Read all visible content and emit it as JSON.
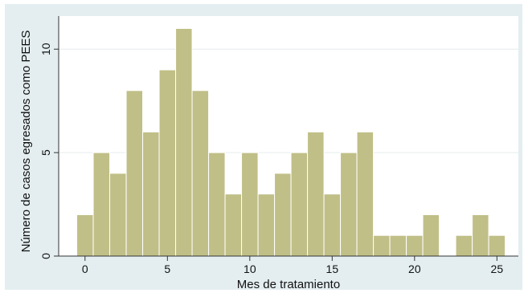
{
  "chart_data": {
    "type": "bar",
    "title": "",
    "xlabel": "Mes de tratamiento",
    "ylabel": "Número de casos egresados como PEES",
    "x": [
      0,
      1,
      2,
      3,
      4,
      5,
      6,
      7,
      8,
      9,
      10,
      11,
      12,
      13,
      14,
      15,
      16,
      17,
      18,
      19,
      20,
      21,
      23,
      24,
      25
    ],
    "values": [
      2,
      5,
      4,
      8,
      6,
      9,
      11,
      8,
      5,
      3,
      5,
      3,
      4,
      5,
      6,
      3,
      5,
      6,
      1,
      1,
      1,
      2,
      1,
      2,
      1
    ],
    "bin_width": 1,
    "xlim": [
      -1.6,
      26.3
    ],
    "ylim": [
      0,
      11.6
    ],
    "xticks": [
      "0",
      "5",
      "10",
      "15",
      "20",
      "25"
    ],
    "yticks": [
      "0",
      "5",
      "10"
    ],
    "grid": true,
    "colors": {
      "bar_fill": "#c0bf87",
      "bar_stroke": "#ffffff",
      "plot_background": "#ffffff",
      "outer_background": "#e4eef0",
      "grid": "#e6ecee",
      "axis": "#333333"
    }
  }
}
